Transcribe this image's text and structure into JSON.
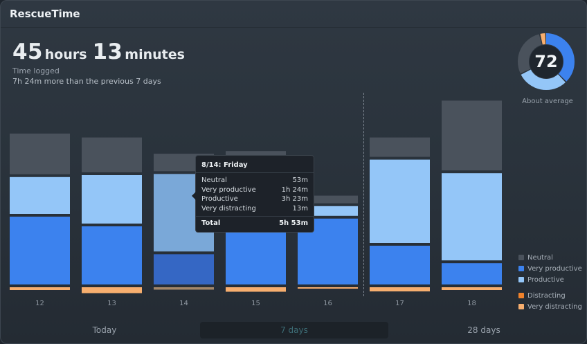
{
  "app": {
    "title": "RescueTime"
  },
  "summary": {
    "hours": "45",
    "hours_unit": "hours",
    "minutes": "13",
    "minutes_unit": "minutes",
    "label": "Time logged",
    "comparison": "7h 24m more than the previous 7 days"
  },
  "score": {
    "value": "72",
    "caption": "About average"
  },
  "colors": {
    "neutral": "#4a525c",
    "very_productive": "#3c82ee",
    "productive": "#94c6f8",
    "distracting": "#f0822b",
    "very_distracting": "#f7ae6e"
  },
  "chart_data": {
    "type": "bar",
    "stacked": true,
    "categories": [
      "12",
      "13",
      "14",
      "15",
      "16",
      "17",
      "18"
    ],
    "ylabel": "",
    "series": [
      {
        "name": "Neutral",
        "values": [
          1.05,
          0.9,
          0.45,
          1.0,
          0.2,
          0.5,
          1.8
        ]
      },
      {
        "name": "Very productive",
        "values": [
          1.75,
          1.5,
          0.78,
          1.5,
          1.7,
          1.0,
          0.55
        ]
      },
      {
        "name": "Productive",
        "values": [
          0.95,
          1.25,
          2.0,
          0.8,
          0.25,
          2.15,
          2.25
        ]
      },
      {
        "name": "Distracting",
        "values": [
          0,
          0,
          0,
          0,
          0,
          0,
          0
        ]
      },
      {
        "name": "Very distracting",
        "values": [
          0.08,
          0.17,
          0.07,
          0.13,
          0.03,
          0.12,
          0.08
        ]
      }
    ],
    "divider_after": "16"
  },
  "donut": {
    "segments": [
      {
        "label": "productive",
        "color": "#3c82ee",
        "fraction": 0.38
      },
      {
        "label": "light-productive",
        "color": "#94c6f8",
        "fraction": 0.3
      },
      {
        "label": "neutral",
        "color": "#4a525c",
        "fraction": 0.285
      },
      {
        "label": "distracting",
        "color": "#f7ae6e",
        "fraction": 0.035
      }
    ]
  },
  "legend": [
    {
      "label": "Neutral",
      "color": "#4a525c"
    },
    {
      "label": "Very productive",
      "color": "#3c82ee"
    },
    {
      "label": "Productive",
      "color": "#94c6f8"
    },
    {
      "label": "Distracting",
      "color": "#f0822b"
    },
    {
      "label": "Very distracting",
      "color": "#f7ae6e"
    }
  ],
  "tooltip": {
    "title": "8/14: Friday",
    "rows": [
      {
        "label": "Neutral",
        "value": "53m"
      },
      {
        "label": "Very productive",
        "value": "1h 24m"
      },
      {
        "label": "Productive",
        "value": "3h 23m"
      },
      {
        "label": "Very distracting",
        "value": "13m"
      }
    ],
    "total_label": "Total",
    "total_value": "5h 53m"
  },
  "tabs": [
    {
      "label": "Today",
      "active": false
    },
    {
      "label": "7 days",
      "active": true
    },
    {
      "label": "28 days",
      "active": false
    }
  ]
}
